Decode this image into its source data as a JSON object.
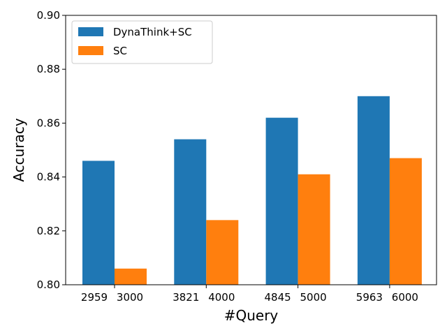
{
  "chart_data": {
    "type": "bar",
    "title": "",
    "xlabel": "#Query",
    "ylabel": "Accuracy",
    "ylim": [
      0.8,
      0.9
    ],
    "yticks": [
      "0.80",
      "0.82",
      "0.84",
      "0.86",
      "0.88",
      "0.90"
    ],
    "grid": false,
    "legend_position": "top-left",
    "groups": [
      {
        "tick_labels": [
          "2959",
          "3000"
        ],
        "values": [
          0.846,
          0.806
        ]
      },
      {
        "tick_labels": [
          "3821",
          "4000"
        ],
        "values": [
          0.854,
          0.824
        ]
      },
      {
        "tick_labels": [
          "4845",
          "5000"
        ],
        "values": [
          0.862,
          0.841
        ]
      },
      {
        "tick_labels": [
          "5963",
          "6000"
        ],
        "values": [
          0.87,
          0.847
        ]
      }
    ],
    "series": [
      {
        "name": "DynaThink+SC",
        "color": "#1f77b4",
        "values": [
          0.846,
          0.854,
          0.862,
          0.87
        ]
      },
      {
        "name": "SC",
        "color": "#ff7f0e",
        "values": [
          0.806,
          0.824,
          0.841,
          0.847
        ]
      }
    ]
  }
}
